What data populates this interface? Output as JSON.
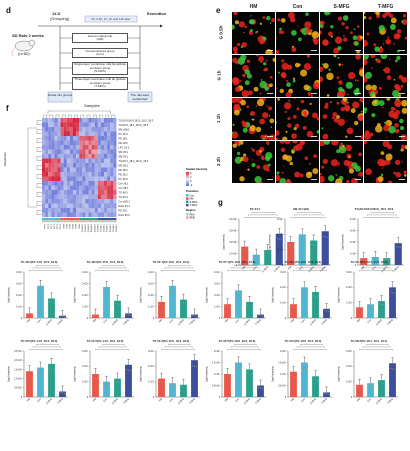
{
  "figure": {
    "panels": {
      "d": "d",
      "e": "e",
      "f": "f",
      "g": "g"
    },
    "design": {
      "mice_label": "SD Rats 2 weeks",
      "n_label": "(n=60)",
      "timepoint": "14 D",
      "grouping": "(Grouping)",
      "execution": "Execution",
      "top_bar": "0h, 0.5h, 1h, 2h and 12h later",
      "groups": [
        "Human milk group",
        "(HM)",
        "Unencountered group",
        "(Con)",
        "Single-layer membrane milk fat globule",
        "emulsion group",
        "(S-MFG)",
        "Three-layer membrane milk fat globule",
        "emulsion group",
        "(T-MFG)"
      ],
      "left_bottom": "Divide into groups",
      "right_bottom": "The rats were euthanized"
    },
    "microscopy": {
      "columns": [
        "HM",
        "Con",
        "S-MFG",
        "T-MFG"
      ],
      "rows": [
        "0.5h",
        "1h",
        "1h",
        "2h"
      ],
      "row_labels": [
        "G 0.5h",
        "G 1h",
        "1 1h",
        "2 2h"
      ]
    },
    "heatmap": {
      "top_label": "Samples",
      "side_label": "Metabolite",
      "row_labels": [
        "TG(16:0/18:1/18:2)_18:2_18:3",
        "TG(16:0_18:1_18:2)_18:3",
        "SM d18:1",
        "PC 16:0",
        "PE 18:1",
        "PE 18:0",
        "LPC 18:2",
        "SM 36:1",
        "SM 34:1",
        "TG(18:1_18:2_18:2)_18:3",
        "SM 38:1",
        "PE 38:4",
        "PE 36:2",
        "PC 36:2",
        "Cer 36:1",
        "Cer 38:1",
        "TG 48:1",
        "TG 50:2",
        "Cer d18:1",
        "DAG 34:1",
        "PE 34:1",
        "DAG 36:2"
      ],
      "legend_title": "Scaled intensity",
      "legend_ticks": [
        "4",
        "2",
        "0",
        "-2"
      ],
      "legend_pos": "Positions",
      "legend_items": [
        "Con",
        "HM",
        "S-MFG",
        "T-MFG"
      ],
      "legend_region": "Region",
      "legend_region_items": [
        "PEA",
        "PEB"
      ]
    },
    "colors": {
      "HM": "#e8574a",
      "Con": "#4fb6d4",
      "S-MFG": "#2a9f8c",
      "T-MFG": "#3b4f9a",
      "heat_high": "#d7263d",
      "heat_mid": "#f1f1f8",
      "heat_low": "#5b6bd6"
    },
    "bar_charts": [
      {
        "title": "PC 34:1",
        "y_label": "Lipid intensity",
        "categories": [
          "HM",
          "Con",
          "S-MFG",
          "T-MFG"
        ],
        "values": [
          1.6,
          0.9,
          1.3,
          2.7
        ],
        "ymax": 4,
        "yticks": [
          "4.0×10⁸",
          "3.0×10⁸",
          "2.0×10⁸",
          "1.0×10⁸",
          "0"
        ]
      },
      {
        "title": "SM 41:1(d2)",
        "y_label": "Lipid intensity",
        "categories": [
          "HM",
          "Con",
          "S-MFG",
          "T-MFG"
        ],
        "values": [
          1.5,
          2.0,
          1.6,
          2.2
        ],
        "ymax": 3,
        "yticks": [
          "3×10⁸",
          "2×10⁸",
          "1×10⁸",
          "0"
        ]
      },
      {
        "title": "TG(18:1/18:2/18:2)_18:2_18:3",
        "y_label": "Lipid intensity",
        "categories": [
          "HM",
          "Con",
          "S-MFG",
          "T-MFG"
        ],
        "values": [
          0.6,
          0.7,
          0.6,
          1.9
        ],
        "ymax": 4,
        "yticks": [
          "4×10⁸",
          "3×10⁸",
          "2×10⁸",
          "1×10⁸",
          "0"
        ]
      },
      {
        "title": "TG 49:0(TG 14:0_16:0_19:0)",
        "y_label": "Lipid intensity",
        "categories": [
          "HM",
          "Con",
          "S-MFG",
          "T-MFG"
        ],
        "values": [
          0.4,
          2.8,
          1.7,
          0.2
        ],
        "ymax": 4,
        "yticks": [
          "4×10⁷",
          "3×10⁷",
          "2×10⁷",
          "1×10⁷",
          "0"
        ]
      },
      {
        "title": "TG 49:0(TG 15:0_16:0_18:0)",
        "y_label": "Lipid intensity",
        "categories": [
          "HM",
          "Con",
          "S-MFG",
          "T-MFG"
        ],
        "values": [
          0.3,
          2.7,
          1.5,
          0.4
        ],
        "ymax": 4,
        "yticks": [
          "4×10⁷",
          "3×10⁷",
          "2×10⁷",
          "1×10⁷",
          "0"
        ]
      },
      {
        "title": "TG 51:1(TG 16:0_16:0_19:1)",
        "y_label": "Lipid intensity",
        "categories": [
          "HM",
          "Con",
          "S-MFG",
          "T-MFG"
        ],
        "values": [
          1.4,
          2.8,
          1.6,
          0.3
        ],
        "ymax": 4,
        "yticks": [
          "4×10⁷",
          "3×10⁷",
          "2×10⁷",
          "1×10⁷",
          "0"
        ]
      },
      {
        "title": "TG 57:1(TG 18:0_18:1_21:0)",
        "y_label": "Lipid intensity",
        "categories": [
          "HM",
          "Con",
          "S-MFG",
          "T-MFG"
        ],
        "values": [
          1.2,
          2.4,
          1.4,
          0.3
        ],
        "ymax": 4,
        "yticks": [
          "4×10⁷",
          "3×10⁷",
          "2×10⁷",
          "1×10⁷",
          "0"
        ]
      },
      {
        "title": "TG 49:1(TG 16:0_15:0_18:1)",
        "y_label": "Lipid intensity",
        "categories": [
          "HM",
          "Con",
          "S-MFG",
          "T-MFG"
        ],
        "values": [
          0.9,
          2.0,
          1.7,
          0.6
        ],
        "ymax": 3,
        "yticks": [
          "3×10⁷",
          "2×10⁷",
          "1×10⁷",
          "0"
        ]
      },
      {
        "title": "TG 61:3(TG 22:1_21:0_18:2)",
        "y_label": "Lipid intensity",
        "categories": [
          "HM",
          "Con",
          "S-MFG",
          "T-MFG"
        ],
        "values": [
          0.7,
          0.9,
          1.1,
          2.0
        ],
        "ymax": 3,
        "yticks": [
          "3×10⁷",
          "2×10⁷",
          "1×10⁷",
          "0"
        ]
      },
      {
        "title": "TG 50:5(TG 14:0_18:2_18:3)",
        "y_label": "Lipid intensity",
        "categories": [
          "HM",
          "Con",
          "S-MFG",
          "T-MFG"
        ],
        "values": [
          1.4,
          1.6,
          1.8,
          0.3
        ],
        "ymax": 2.5,
        "yticks": [
          "2.5×10⁷",
          "2.0×10⁷",
          "1.5×10⁷",
          "1.0×10⁷",
          "0.5×10⁷",
          "0"
        ]
      },
      {
        "title": "TG 51:5(TG 14:0_18:2_19:3)",
        "y_label": "Lipid intensity",
        "categories": [
          "HM",
          "Con",
          "S-MFG",
          "T-MFG"
        ],
        "values": [
          1.5,
          1.0,
          1.2,
          2.1
        ],
        "ymax": 3,
        "yticks": [
          "3×10⁷",
          "2×10⁷",
          "1×10⁷",
          "0"
        ]
      },
      {
        "title": "TG 51:6(TG 16:0_18:3_18:3)",
        "y_label": "Lipid intensity",
        "categories": [
          "HM",
          "Con",
          "S-MFG",
          "T-MFG"
        ],
        "values": [
          1.2,
          0.9,
          0.8,
          2.4
        ],
        "ymax": 3,
        "yticks": [
          "3×10⁷",
          "2×10⁷",
          "1×10⁷",
          "0"
        ]
      },
      {
        "title": "TG 52:5(TG 16:0_18:2_18:3)",
        "y_label": "Lipid intensity",
        "categories": [
          "HM",
          "Con",
          "S-MFG",
          "T-MFG"
        ],
        "values": [
          1.0,
          1.5,
          1.2,
          0.5
        ],
        "ymax": 2,
        "yticks": [
          "2×10⁸",
          "1.5×10⁸",
          "1×10⁸",
          "0.5×10⁸",
          "0"
        ]
      },
      {
        "title": "TG 54:5(TG 18:0_18:2_18:3)",
        "y_label": "Lipid intensity",
        "categories": [
          "HM",
          "Con",
          "S-MFG",
          "T-MFG"
        ],
        "values": [
          1.1,
          1.5,
          0.9,
          0.2
        ],
        "ymax": 2,
        "yticks": [
          "2×10⁷",
          "1.5×10⁷",
          "1×10⁷",
          "0.5×10⁷",
          "0"
        ]
      },
      {
        "title": "TG 58:3(TG 18:1_18:1_22:1)",
        "y_label": "Lipid intensity",
        "categories": [
          "HM",
          "Con",
          "S-MFG",
          "T-MFG"
        ],
        "values": [
          0.8,
          0.9,
          1.1,
          2.2
        ],
        "ymax": 3,
        "yticks": [
          "3×10⁷",
          "2×10⁷",
          "1×10⁷",
          "0"
        ]
      }
    ]
  }
}
